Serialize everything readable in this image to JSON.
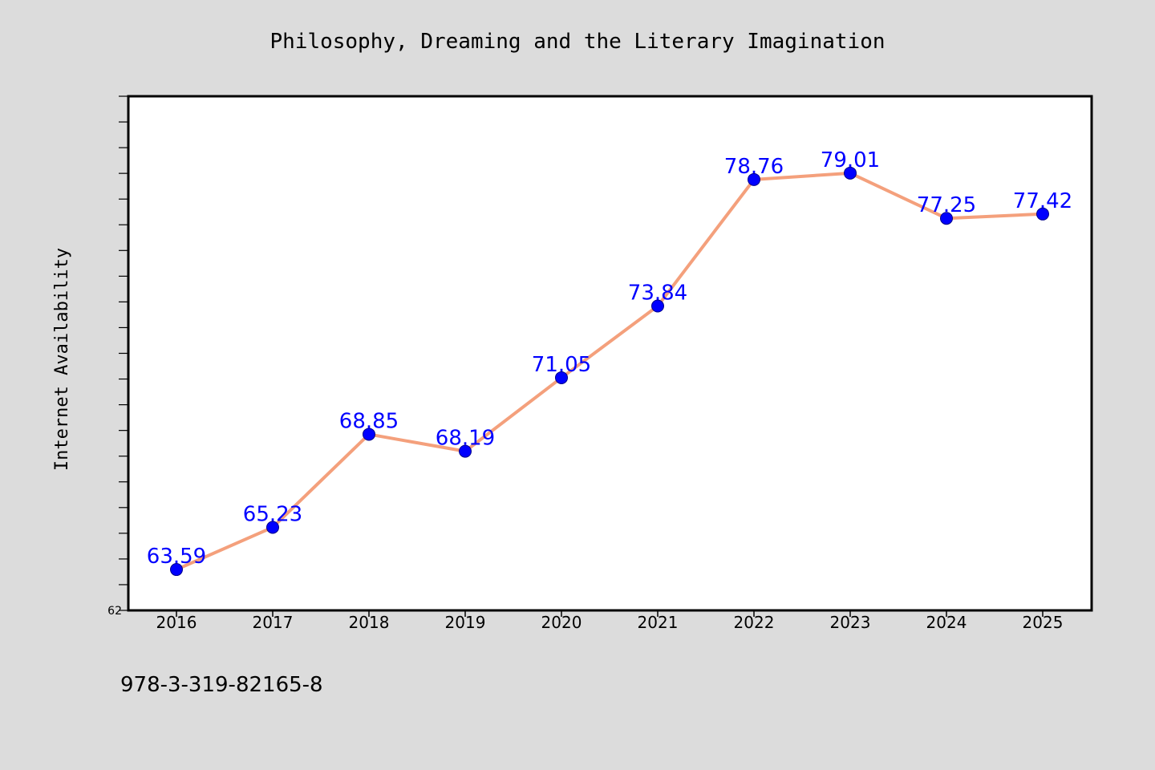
{
  "chart_data": {
    "type": "line",
    "title": "Philosophy, Dreaming and the Literary Imagination",
    "xlabel": "",
    "ylabel": "Internet Availability",
    "categories": [
      "2016",
      "2017",
      "2018",
      "2019",
      "2020",
      "2021",
      "2022",
      "2023",
      "2024",
      "2025"
    ],
    "series": [
      {
        "values": [
          63.59,
          65.23,
          68.85,
          68.19,
          71.05,
          73.84,
          78.76,
          79.01,
          77.25,
          77.42
        ],
        "data_labels": [
          "63.59",
          "65.23",
          "68.85",
          "68.19",
          "71.05",
          "73.84",
          "78.76",
          "79.01",
          "77.25",
          "77.42"
        ]
      }
    ],
    "ylim": [
      62,
      82
    ],
    "y_tick_labels": [
      "62"
    ],
    "grid": false,
    "legend": "none",
    "line_color": "#f4a07c",
    "marker_color": "#0000ff",
    "label_color": "#0000ff"
  },
  "footer": {
    "text": "978-3-319-82165-8"
  }
}
